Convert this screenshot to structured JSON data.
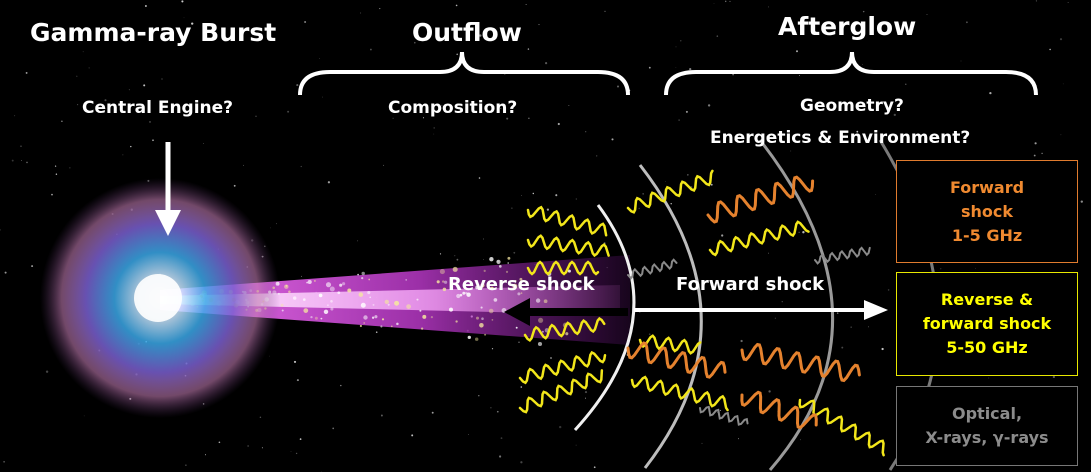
{
  "titles": {
    "gamma_ray_burst": "Gamma-ray Burst",
    "outflow": "Outflow",
    "afterglow": "Afterglow"
  },
  "questions": {
    "central_engine": "Central Engine?",
    "composition": "Composition?",
    "geometry": "Geometry?",
    "energetics": "Energetics & Environment?"
  },
  "arrows": {
    "reverse_shock": "Reverse shock",
    "forward_shock": "Forward shock"
  },
  "legend": {
    "forward": {
      "line1": "Forward",
      "line2": "shock",
      "line3": "1-5 GHz",
      "color": "#f08a30"
    },
    "reverse_forward": {
      "line1": "Reverse &",
      "line2": "forward shock",
      "line3": "5-50 GHz",
      "color": "#ffff00"
    },
    "other": {
      "line1": "Optical,",
      "line2": "X-rays, γ-rays",
      "color": "#8c8c8c"
    }
  },
  "colors": {
    "yellow_wave": "#f2e61a",
    "orange_wave": "#e5822e",
    "gray_wave": "#8a8a8a",
    "jet": "#e040e8"
  }
}
